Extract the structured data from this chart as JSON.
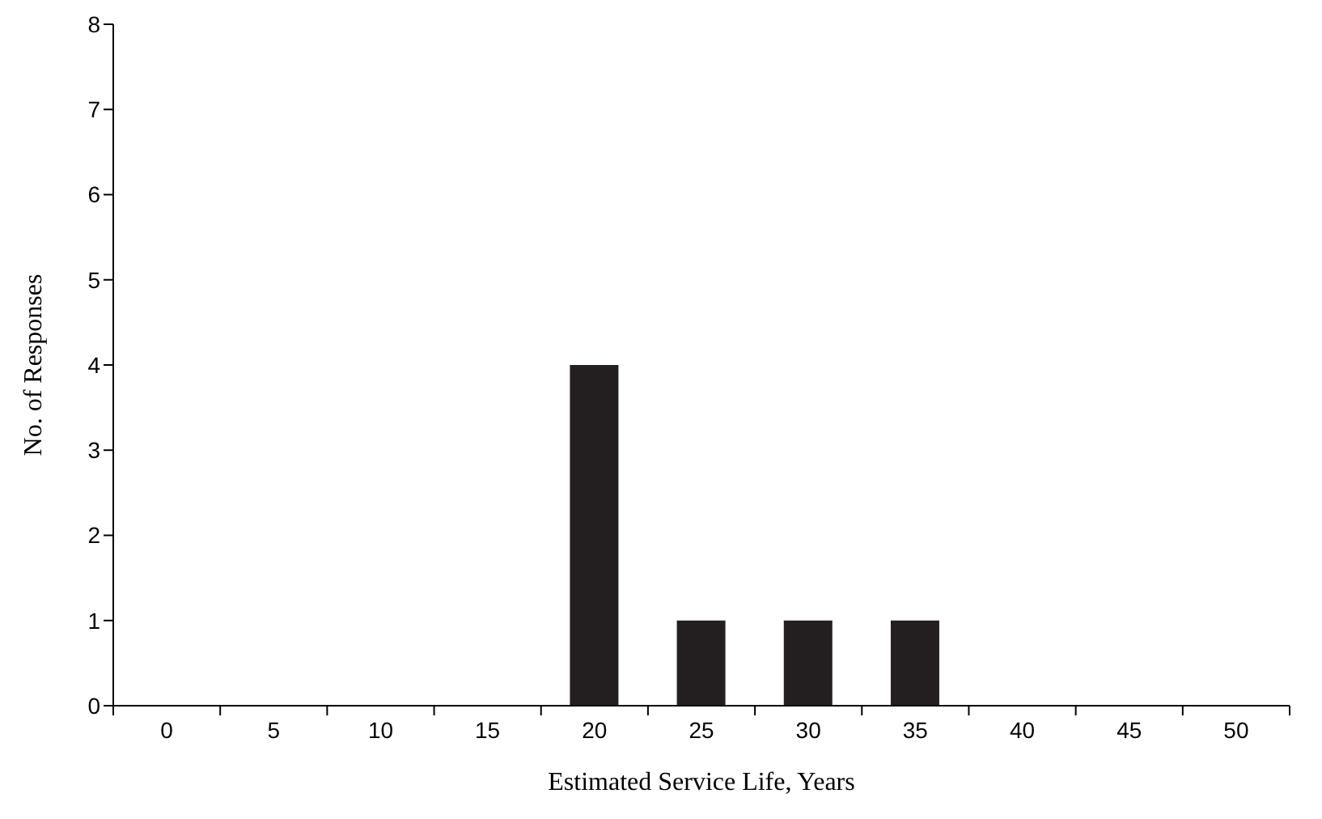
{
  "chart_data": {
    "type": "bar",
    "xlabel": "Estimated Service Life, Years",
    "ylabel": "No. of Responses",
    "categories": [
      "0",
      "5",
      "10",
      "15",
      "20",
      "25",
      "30",
      "35",
      "40",
      "45",
      "50"
    ],
    "values": [
      0,
      0,
      0,
      0,
      4,
      1,
      1,
      1,
      0,
      0,
      0
    ],
    "color": "#231f20",
    "ylim": [
      0,
      8
    ],
    "yticks": [
      0,
      1,
      2,
      3,
      4,
      5,
      6,
      7,
      8
    ],
    "grid": false,
    "legend": false
  }
}
